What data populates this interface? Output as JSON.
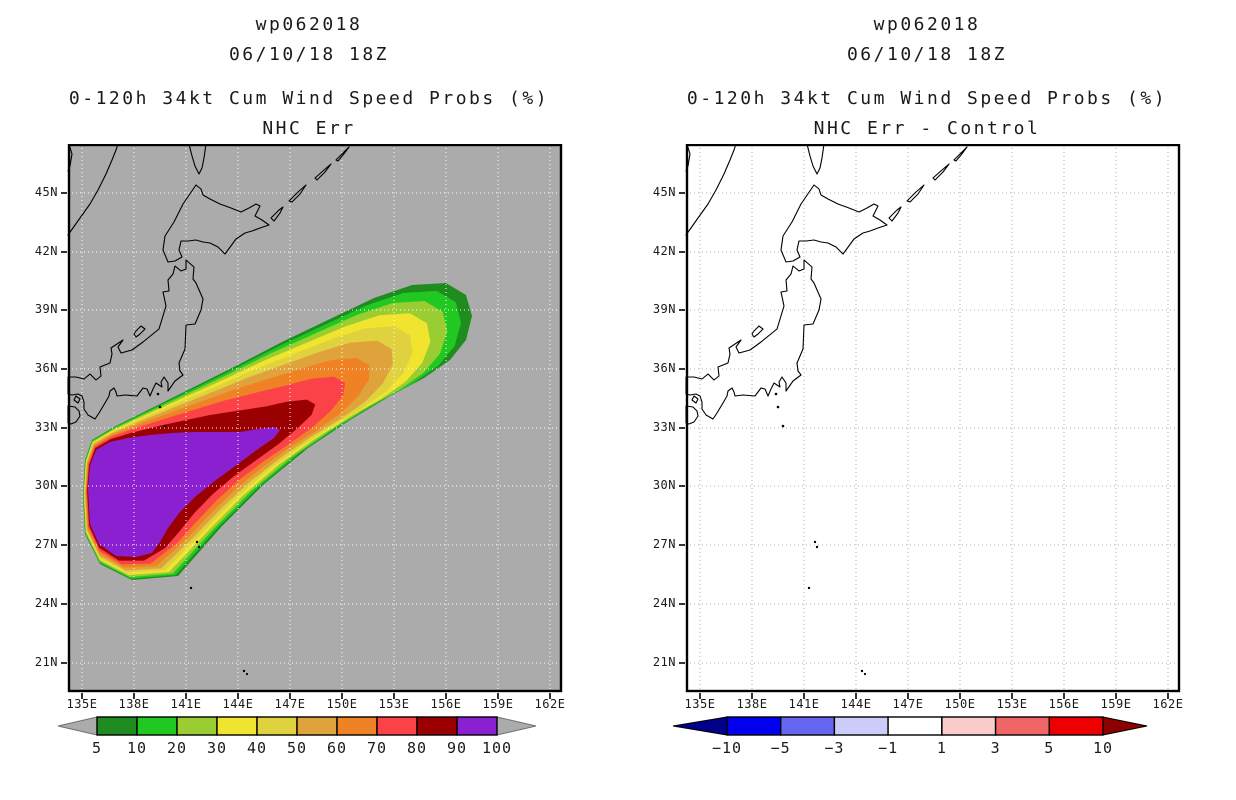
{
  "panels": [
    {
      "storm_id": "wp062018",
      "init_time": "06/10/18 18Z",
      "product_title": "0-120h 34kt Cum Wind Speed Probs (%)",
      "model_label": "NHC Err",
      "map": {
        "bg": "#ABABAB",
        "grid_color": "#FFFFFF",
        "coast_color": "#000000",
        "has_swath": true,
        "lat_labels": [
          "45N",
          "42N",
          "39N",
          "36N",
          "33N",
          "30N",
          "27N",
          "24N",
          "21N"
        ],
        "lon_labels": [
          "135E",
          "138E",
          "141E",
          "144E",
          "147E",
          "150E",
          "153E",
          "156E",
          "159E",
          "162E"
        ]
      },
      "colorbar": {
        "ticks": [
          "5",
          "10",
          "20",
          "30",
          "40",
          "50",
          "60",
          "70",
          "80",
          "90",
          "100"
        ],
        "colors": [
          "#1E8C1E",
          "#21C821",
          "#9ACD32",
          "#F0E42E",
          "#E0D23E",
          "#E0A33C",
          "#F08226",
          "#FA4248",
          "#9A0000",
          "#8A20D0"
        ],
        "end_left": "#ABABAB",
        "end_right": "#ABABAB",
        "end_outline": "#707070",
        "segment_border": "#000000"
      }
    },
    {
      "storm_id": "wp062018",
      "init_time": "06/10/18 18Z",
      "product_title": "0-120h 34kt Cum Wind Speed Probs (%)",
      "model_label": "NHC Err - Control",
      "map": {
        "bg": "#FFFFFF",
        "grid_color": "#B0B0B0",
        "coast_color": "#000000",
        "has_swath": false,
        "lat_labels": [
          "45N",
          "42N",
          "39N",
          "36N",
          "33N",
          "30N",
          "27N",
          "24N",
          "21N"
        ],
        "lon_labels": [
          "135E",
          "138E",
          "141E",
          "144E",
          "147E",
          "150E",
          "153E",
          "156E",
          "159E",
          "162E"
        ]
      },
      "colorbar": {
        "ticks": [
          "−10",
          "−5",
          "−3",
          "−1",
          "1",
          "3",
          "5",
          "10"
        ],
        "colors": [
          "#0000EE",
          "#6666F0",
          "#CCCCFA",
          "#FFFFFF",
          "#FACCCC",
          "#F06666",
          "#EE0000"
        ],
        "end_left": "#00008B",
        "end_right": "#8B0000",
        "end_outline": "#000000",
        "segment_border": "#000000"
      }
    }
  ],
  "swath": {
    "unit": "%",
    "description": "Cumulative 34kt wind probability contours, 90-100% core SW of Ogasawara extending NE toward 157E/39N",
    "levels": [
      {
        "value": 5,
        "color": "#1E8C1E",
        "f": 1.0
      },
      {
        "value": 10,
        "color": "#21C821",
        "f": 0.945
      },
      {
        "value": 20,
        "color": "#9ACD32",
        "f": 0.875
      },
      {
        "value": 30,
        "color": "#F0E42E",
        "f": 0.79
      },
      {
        "value": 40,
        "color": "#E0D23E",
        "f": 0.7
      },
      {
        "value": 50,
        "color": "#E0A33C",
        "f": 0.6
      },
      {
        "value": 60,
        "color": "#F08226",
        "f": 0.48
      },
      {
        "value": 70,
        "color": "#FA4248",
        "f": 0.35
      },
      {
        "value": 80,
        "color": "#9A0000",
        "f": 0.19
      },
      {
        "value": 90,
        "color": "#8A20D0",
        "f": 0.0
      }
    ],
    "outer_poly": [
      [
        15,
        352
      ],
      [
        17,
        316
      ],
      [
        24,
        296
      ],
      [
        46,
        283
      ],
      [
        80,
        266
      ],
      [
        120,
        246
      ],
      [
        166,
        223
      ],
      [
        214,
        198
      ],
      [
        262,
        175
      ],
      [
        306,
        154
      ],
      [
        344,
        141
      ],
      [
        378,
        139
      ],
      [
        398,
        151
      ],
      [
        404,
        172
      ],
      [
        398,
        196
      ],
      [
        382,
        216
      ],
      [
        356,
        234
      ],
      [
        322,
        252
      ],
      [
        282,
        276
      ],
      [
        240,
        304
      ],
      [
        196,
        340
      ],
      [
        154,
        382
      ],
      [
        110,
        432
      ],
      [
        64,
        436
      ],
      [
        32,
        420
      ],
      [
        17,
        390
      ]
    ],
    "inner_poly": [
      [
        20,
        345
      ],
      [
        22,
        322
      ],
      [
        28,
        306
      ],
      [
        42,
        298
      ],
      [
        60,
        294
      ],
      [
        82,
        291
      ],
      [
        104,
        289
      ],
      [
        126,
        288
      ],
      [
        150,
        288
      ],
      [
        172,
        288
      ],
      [
        190,
        285
      ],
      [
        206,
        283
      ],
      [
        212,
        286
      ],
      [
        206,
        294
      ],
      [
        190,
        305
      ],
      [
        170,
        320
      ],
      [
        148,
        336
      ],
      [
        128,
        352
      ],
      [
        112,
        368
      ],
      [
        100,
        384
      ],
      [
        92,
        398
      ],
      [
        84,
        409
      ],
      [
        68,
        413
      ],
      [
        48,
        412
      ],
      [
        31,
        400
      ],
      [
        22,
        380
      ]
    ]
  }
}
